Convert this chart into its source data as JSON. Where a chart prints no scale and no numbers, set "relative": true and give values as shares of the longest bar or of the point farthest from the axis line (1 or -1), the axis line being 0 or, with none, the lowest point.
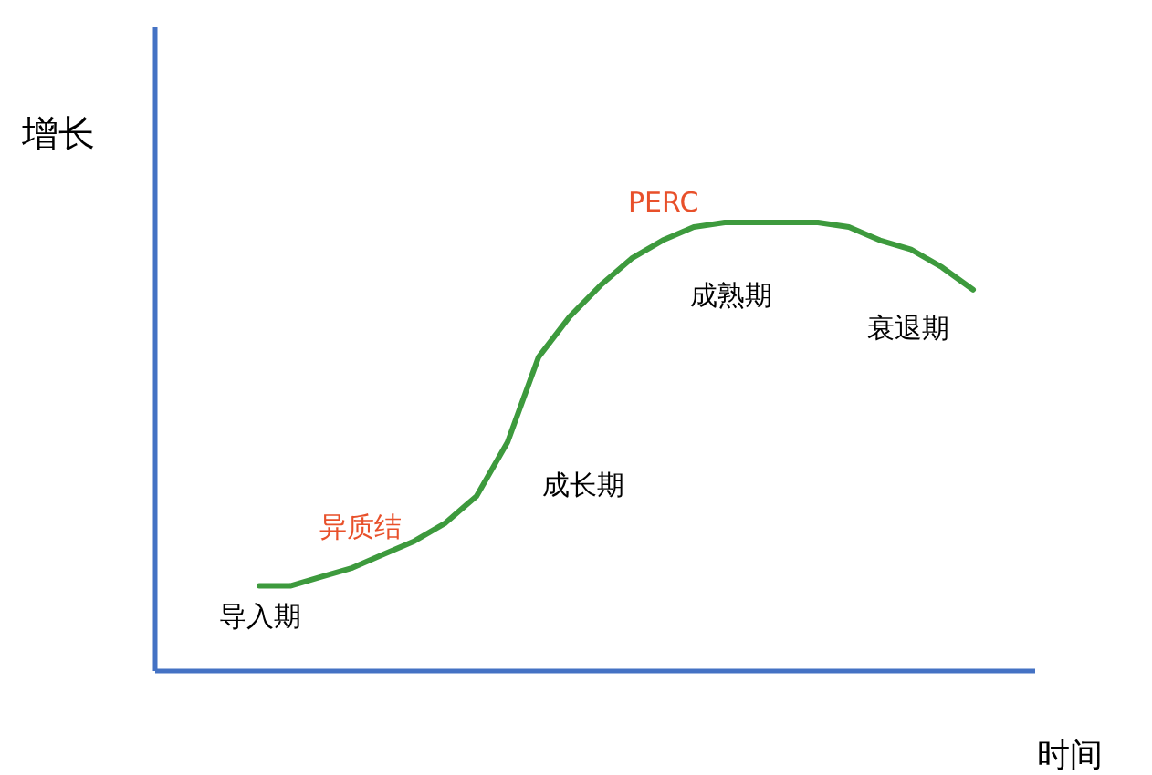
{
  "chart_data": {
    "type": "line",
    "relative": true,
    "xlabel": "时间",
    "ylabel": "增长",
    "categories": [
      null,
      null,
      null,
      null,
      null,
      null,
      null,
      null,
      null,
      null,
      null,
      null,
      null,
      null,
      null,
      null,
      null,
      null,
      null,
      null,
      null,
      null,
      null,
      null
    ],
    "series": [
      {
        "color": "#3d9a3d",
        "values": [
          0.19,
          0.19,
          0.21,
          0.23,
          0.26,
          0.29,
          0.33,
          0.39,
          0.51,
          0.7,
          0.79,
          0.86,
          0.92,
          0.96,
          0.99,
          1,
          1,
          1,
          1,
          0.99,
          0.96,
          0.94,
          0.9,
          0.85
        ]
      }
    ],
    "annotations": [
      "导入期",
      "异质结",
      "成长期",
      "PERC",
      "成熟期",
      "衰退期"
    ],
    "marker": "none",
    "line_style": "solid"
  }
}
